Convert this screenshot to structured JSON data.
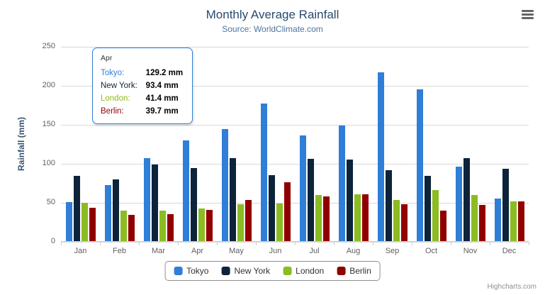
{
  "chart_data": {
    "type": "bar",
    "title": "Monthly Average Rainfall",
    "subtitle": "Source: WorldClimate.com",
    "xlabel": "",
    "ylabel": "Rainfall (mm)",
    "credits": "Highcharts.com",
    "categories": [
      "Jan",
      "Feb",
      "Mar",
      "Apr",
      "May",
      "Jun",
      "Jul",
      "Aug",
      "Sep",
      "Oct",
      "Nov",
      "Dec"
    ],
    "series": [
      {
        "name": "Tokyo",
        "color": "#2f7ed8",
        "values": [
          49.9,
          71.5,
          106.4,
          129.2,
          144.0,
          176.0,
          135.6,
          148.5,
          216.4,
          194.1,
          95.6,
          54.4
        ]
      },
      {
        "name": "New York",
        "color": "#0d233a",
        "values": [
          83.6,
          78.8,
          98.5,
          93.4,
          106.0,
          84.5,
          105.0,
          104.3,
          91.2,
          83.5,
          106.6,
          92.3
        ]
      },
      {
        "name": "London",
        "color": "#8bbc21",
        "values": [
          48.9,
          38.8,
          39.3,
          41.4,
          47.0,
          48.3,
          59.0,
          59.6,
          52.4,
          65.2,
          59.3,
          51.2
        ]
      },
      {
        "name": "Berlin",
        "color": "#910000",
        "values": [
          42.4,
          33.2,
          34.5,
          39.7,
          52.6,
          75.5,
          57.4,
          60.4,
          47.6,
          39.1,
          46.8,
          51.1
        ]
      }
    ],
    "ylim": [
      0,
      250
    ],
    "yticks": [
      0,
      50,
      100,
      150,
      200,
      250
    ],
    "grid": true,
    "legend_position": "bottom"
  },
  "tooltip": {
    "header": "Apr",
    "rows": [
      {
        "name": "Tokyo:",
        "value": "129.2 mm",
        "color": "#2f7ed8"
      },
      {
        "name": "New York:",
        "value": "93.4 mm",
        "color": "#0d233a"
      },
      {
        "name": "London:",
        "value": "41.4 mm",
        "color": "#8bbc21"
      },
      {
        "name": "Berlin:",
        "value": "39.7 mm",
        "color": "#910000"
      }
    ]
  }
}
